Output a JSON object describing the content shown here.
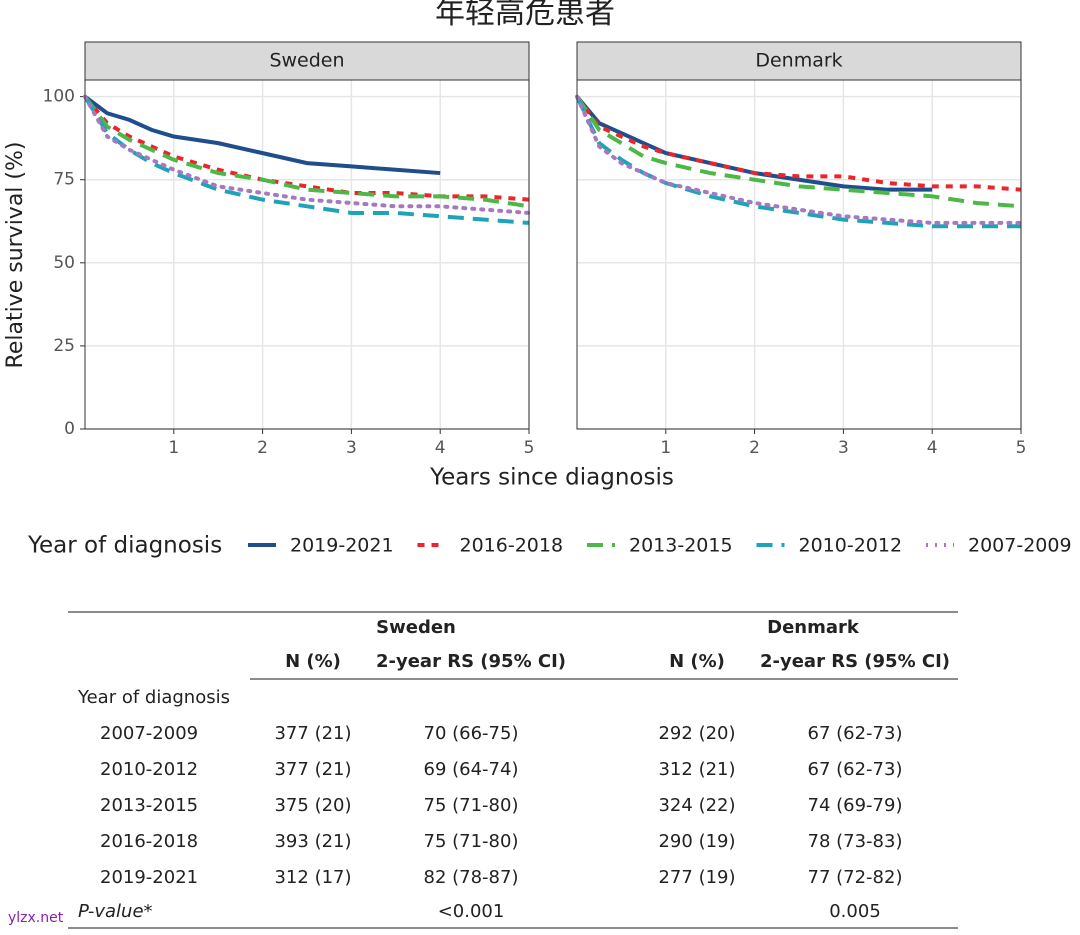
{
  "title": "年轻高危患者",
  "xlabel": "Years since diagnosis",
  "ylabel": "Relative survival (%)",
  "legend_title": "Year of diagnosis",
  "chart_data": [
    {
      "type": "line",
      "title": "Sweden",
      "x": [
        0,
        0.25,
        0.5,
        0.75,
        1,
        1.5,
        2,
        2.5,
        3,
        3.5,
        4,
        4.5,
        5
      ],
      "xlim": [
        0,
        5
      ],
      "xticks": [
        1,
        2,
        3,
        4,
        5
      ],
      "ylim": [
        0,
        105
      ],
      "yticks": [
        0,
        25,
        50,
        75,
        100
      ],
      "grid": true,
      "legend": "bottom",
      "series": [
        {
          "name": "2019-2021",
          "color": "#1f4e8c",
          "line_style": "solid",
          "values": [
            100,
            95,
            93,
            90,
            88,
            86,
            83,
            80,
            79,
            78,
            77,
            null,
            null
          ]
        },
        {
          "name": "2016-2018",
          "color": "#e8262b",
          "line_style": "dashed",
          "values": [
            100,
            92,
            88,
            85,
            82,
            78,
            75,
            73,
            71,
            71,
            70,
            70,
            69
          ]
        },
        {
          "name": "2013-2015",
          "color": "#4db848",
          "line_style": "longdash",
          "values": [
            100,
            91,
            87,
            84,
            81,
            77,
            75,
            72,
            71,
            70,
            70,
            69,
            67
          ]
        },
        {
          "name": "2010-2012",
          "color": "#1fa3b8",
          "line_style": "longdash",
          "values": [
            100,
            89,
            84,
            80,
            77,
            72,
            69,
            67,
            65,
            65,
            64,
            63,
            62
          ]
        },
        {
          "name": "2007-2009",
          "color": "#a678c0",
          "line_style": "dotted",
          "values": [
            100,
            88,
            84,
            81,
            78,
            73,
            71,
            69,
            68,
            67,
            67,
            66,
            65
          ]
        }
      ]
    },
    {
      "type": "line",
      "title": "Denmark",
      "x": [
        0,
        0.25,
        0.5,
        0.75,
        1,
        1.5,
        2,
        2.5,
        3,
        3.5,
        4,
        4.5,
        5
      ],
      "xlim": [
        0,
        5
      ],
      "xticks": [
        1,
        2,
        3,
        4,
        5
      ],
      "ylim": [
        0,
        105
      ],
      "yticks": [
        0,
        25,
        50,
        75,
        100
      ],
      "grid": true,
      "series": [
        {
          "name": "2019-2021",
          "color": "#1f4e8c",
          "line_style": "solid",
          "values": [
            100,
            92,
            89,
            86,
            83,
            80,
            77,
            75,
            73,
            72,
            72,
            null,
            null
          ]
        },
        {
          "name": "2016-2018",
          "color": "#e8262b",
          "line_style": "dashed",
          "values": [
            100,
            91,
            88,
            85,
            83,
            80,
            77,
            76,
            76,
            74,
            73,
            73,
            72
          ]
        },
        {
          "name": "2013-2015",
          "color": "#4db848",
          "line_style": "longdash",
          "values": [
            100,
            90,
            86,
            82,
            80,
            77,
            75,
            73,
            72,
            71,
            70,
            68,
            67
          ]
        },
        {
          "name": "2010-2012",
          "color": "#1fa3b8",
          "line_style": "longdash",
          "values": [
            100,
            86,
            81,
            77,
            74,
            70,
            67,
            65,
            63,
            62,
            61,
            61,
            61
          ]
        },
        {
          "name": "2007-2009",
          "color": "#a678c0",
          "line_style": "dotted",
          "values": [
            100,
            85,
            80,
            77,
            74,
            71,
            68,
            66,
            64,
            63,
            62,
            62,
            62
          ]
        }
      ]
    }
  ],
  "table": {
    "groups": [
      "Sweden",
      "Denmark"
    ],
    "columns": [
      "N (%)",
      "2-year RS (95% CI)",
      "N (%)",
      "2-year RS (95% CI)"
    ],
    "section": "Year of diagnosis",
    "rows": [
      [
        "2007-2009",
        "377 (21)",
        "70 (66-75)",
        "292 (20)",
        "67 (62-73)"
      ],
      [
        "2010-2012",
        "377 (21)",
        "69 (64-74)",
        "312 (21)",
        "67 (62-73)"
      ],
      [
        "2013-2015",
        "375 (20)",
        "75 (71-80)",
        "324 (22)",
        "74 (69-79)"
      ],
      [
        "2016-2018",
        "393 (21)",
        "75 (71-80)",
        "290 (19)",
        "78 (73-83)"
      ],
      [
        "2019-2021",
        "312 (17)",
        "82 (78-87)",
        "277 (19)",
        "77 (72-82)"
      ]
    ],
    "pvalue": {
      "label": "P-value*",
      "values": [
        "<0.001",
        "0.005"
      ]
    }
  },
  "watermark": "ylzx.net"
}
